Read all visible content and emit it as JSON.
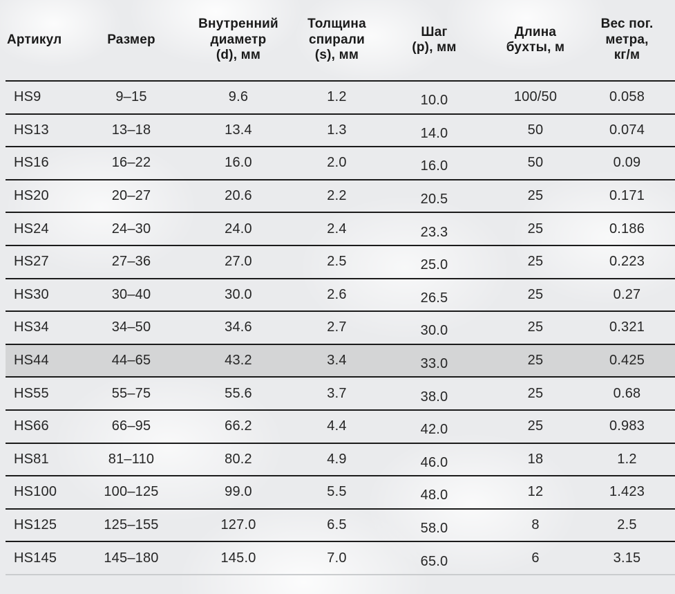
{
  "table": {
    "columns": [
      {
        "key": "article",
        "label": "Артикул"
      },
      {
        "key": "size",
        "label": "Размер"
      },
      {
        "key": "inner_diameter",
        "label": "Внутренний\nдиаметр\n(d), мм"
      },
      {
        "key": "spiral_thickness",
        "label": "Толщина\nспирали\n(s), мм"
      },
      {
        "key": "pitch",
        "label": "Шаг\n(p), мм"
      },
      {
        "key": "coil_length",
        "label": "Длина\nбухты, м"
      },
      {
        "key": "weight_per_meter",
        "label": "Вес пог.\nметра,\nкг/м"
      }
    ],
    "highlighted_article": "HS44",
    "rows": [
      [
        "HS9",
        "9–15",
        "9.6",
        "1.2",
        "10.0",
        "100/50",
        "0.058"
      ],
      [
        "HS13",
        "13–18",
        "13.4",
        "1.3",
        "14.0",
        "50",
        "0.074"
      ],
      [
        "HS16",
        "16–22",
        "16.0",
        "2.0",
        "16.0",
        "50",
        "0.09"
      ],
      [
        "HS20",
        "20–27",
        "20.6",
        "2.2",
        "20.5",
        "25",
        "0.171"
      ],
      [
        "HS24",
        "24–30",
        "24.0",
        "2.4",
        "23.3",
        "25",
        "0.186"
      ],
      [
        "HS27",
        "27–36",
        "27.0",
        "2.5",
        "25.0",
        "25",
        "0.223"
      ],
      [
        "HS30",
        "30–40",
        "30.0",
        "2.6",
        "26.5",
        "25",
        "0.27"
      ],
      [
        "HS34",
        "34–50",
        "34.6",
        "2.7",
        "30.0",
        "25",
        "0.321"
      ],
      [
        "HS44",
        "44–65",
        "43.2",
        "3.4",
        "33.0",
        "25",
        "0.425"
      ],
      [
        "HS55",
        "55–75",
        "55.6",
        "3.7",
        "38.0",
        "25",
        "0.68"
      ],
      [
        "HS66",
        "66–95",
        "66.2",
        "4.4",
        "42.0",
        "25",
        "0.983"
      ],
      [
        "HS81",
        "81–110",
        "80.2",
        "4.9",
        "46.0",
        "18",
        "1.2"
      ],
      [
        "HS100",
        "100–125",
        "99.0",
        "5.5",
        "48.0",
        "12",
        "1.423"
      ],
      [
        "HS125",
        "125–155",
        "127.0",
        "6.5",
        "58.0",
        "8",
        "2.5"
      ],
      [
        "HS145",
        "145–180",
        "145.0",
        "7.0",
        "65.0",
        "6",
        "3.15"
      ]
    ]
  },
  "colors": {
    "background": "#eaebed",
    "row_border": "#1b1b1b",
    "highlight_row": "#d4d5d6",
    "text": "#262626"
  }
}
